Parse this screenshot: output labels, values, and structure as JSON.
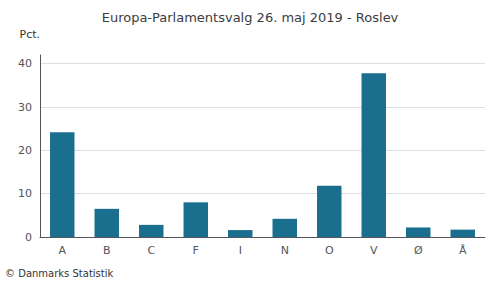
{
  "chart_data": {
    "type": "bar",
    "title": "Europa-Parlamentsvalg 26. maj 2019 - Roslev",
    "ylabel": "Pct.",
    "categories": [
      "A",
      "B",
      "C",
      "F",
      "I",
      "N",
      "O",
      "V",
      "Ø",
      "Å"
    ],
    "values": [
      24.2,
      6.5,
      2.8,
      8.0,
      1.6,
      4.2,
      11.8,
      37.8,
      2.2,
      1.7
    ],
    "color": "#1a6e8e",
    "ylim": [
      0,
      42
    ],
    "yticks": [
      0,
      10,
      20,
      30,
      40
    ],
    "grid": true,
    "annotations": [
      "© Danmarks Statistik"
    ]
  }
}
